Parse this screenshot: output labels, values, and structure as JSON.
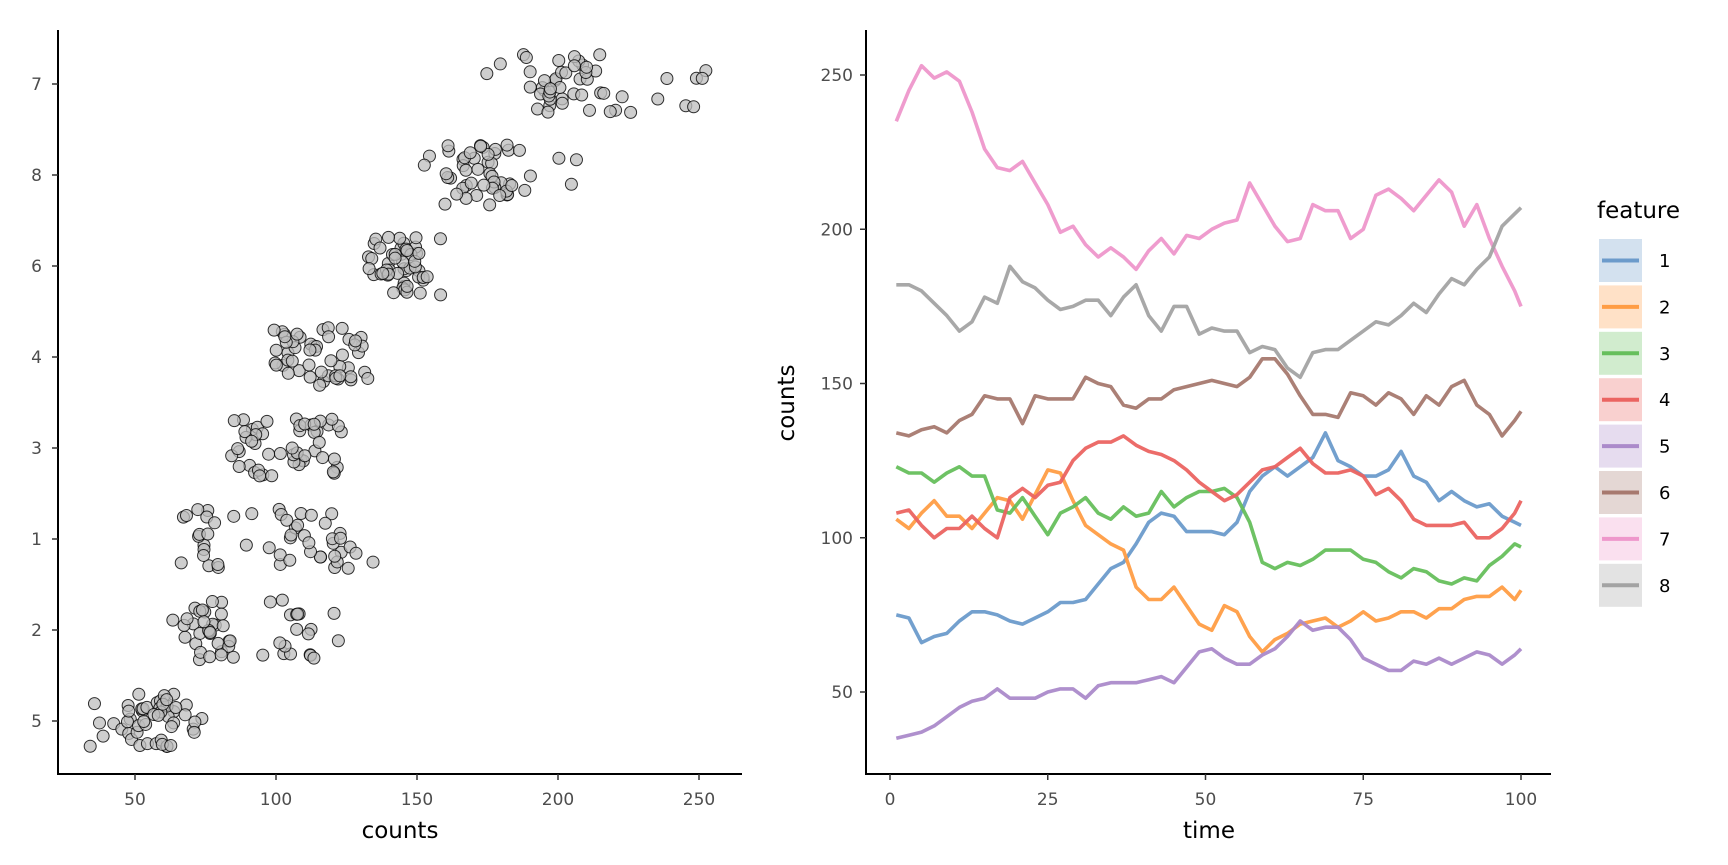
{
  "chart_data": [
    {
      "type": "scatter",
      "subtype": "jittered strip plot",
      "xlabel": "counts",
      "ylabel": "",
      "xlim": [
        22,
        265
      ],
      "xticks": [
        "50",
        "100",
        "150",
        "200",
        "250"
      ],
      "xtick_values": [
        50,
        100,
        150,
        200,
        250
      ],
      "categories_bottom_to_top": [
        "5",
        "2",
        "1",
        "3",
        "4",
        "6",
        "8",
        "7"
      ],
      "point_fill": "#bdbdbd",
      "point_edge": "#000000",
      "values_source": "each category shows the counts of the matching feature from the line chart"
    },
    {
      "type": "line",
      "xlabel": "time",
      "ylabel": "counts",
      "xlim": [
        -4,
        105
      ],
      "ylim": [
        24,
        266
      ],
      "xticks": [
        "0",
        "25",
        "50",
        "75",
        "100"
      ],
      "xtick_values": [
        0,
        25,
        50,
        75,
        100
      ],
      "yticks": [
        "50",
        "100",
        "150",
        "200",
        "250"
      ],
      "ytick_values": [
        50,
        100,
        150,
        200,
        250
      ],
      "legend": {
        "title": "feature",
        "position": "right"
      },
      "x": [
        1,
        3,
        5,
        7,
        9,
        11,
        13,
        15,
        17,
        19,
        21,
        23,
        25,
        27,
        29,
        31,
        33,
        35,
        37,
        39,
        41,
        43,
        45,
        47,
        49,
        51,
        53,
        55,
        57,
        59,
        61,
        63,
        65,
        67,
        69,
        71,
        73,
        75,
        77,
        79,
        81,
        83,
        85,
        87,
        89,
        91,
        93,
        95,
        97,
        99,
        100
      ],
      "series": [
        {
          "name": "1",
          "color": "#6c9bcb",
          "values": [
            75,
            74,
            66,
            68,
            69,
            73,
            76,
            76,
            75,
            73,
            72,
            74,
            76,
            79,
            79,
            80,
            85,
            90,
            92,
            98,
            105,
            108,
            107,
            102,
            102,
            102,
            101,
            105,
            115,
            120,
            123,
            120,
            123,
            126,
            134,
            125,
            123,
            120,
            120,
            122,
            128,
            120,
            118,
            112,
            115,
            112,
            110,
            111,
            107,
            105,
            104
          ]
        },
        {
          "name": "2",
          "color": "#ff9d45",
          "values": [
            106,
            103,
            108,
            112,
            107,
            107,
            103,
            108,
            113,
            112,
            106,
            114,
            122,
            121,
            112,
            104,
            101,
            98,
            96,
            84,
            80,
            80,
            84,
            78,
            72,
            70,
            78,
            76,
            68,
            63,
            67,
            69,
            72,
            73,
            74,
            71,
            73,
            76,
            73,
            74,
            76,
            76,
            74,
            77,
            77,
            80,
            81,
            81,
            84,
            80,
            83
          ]
        },
        {
          "name": "3",
          "color": "#66bf5c",
          "values": [
            123,
            121,
            121,
            118,
            121,
            123,
            120,
            120,
            109,
            108,
            113,
            107,
            101,
            108,
            110,
            113,
            108,
            106,
            110,
            107,
            108,
            115,
            110,
            113,
            115,
            115,
            116,
            113,
            105,
            92,
            90,
            92,
            91,
            93,
            96,
            96,
            96,
            93,
            92,
            89,
            87,
            90,
            89,
            86,
            85,
            87,
            86,
            91,
            94,
            98,
            97
          ]
        },
        {
          "name": "4",
          "color": "#eb6461",
          "values": [
            108,
            109,
            104,
            100,
            103,
            103,
            107,
            103,
            100,
            113,
            116,
            113,
            117,
            118,
            125,
            129,
            131,
            131,
            133,
            130,
            128,
            127,
            125,
            122,
            118,
            115,
            112,
            114,
            118,
            122,
            123,
            126,
            129,
            124,
            121,
            121,
            122,
            120,
            114,
            116,
            112,
            106,
            104,
            104,
            104,
            105,
            100,
            100,
            103,
            108,
            112
          ]
        },
        {
          "name": "5",
          "color": "#ab8aca",
          "values": [
            35,
            36,
            37,
            39,
            42,
            45,
            47,
            48,
            51,
            48,
            48,
            48,
            50,
            51,
            51,
            48,
            52,
            53,
            53,
            53,
            54,
            55,
            53,
            58,
            63,
            64,
            61,
            59,
            59,
            62,
            64,
            68,
            73,
            70,
            71,
            71,
            67,
            61,
            59,
            57,
            57,
            60,
            59,
            61,
            59,
            61,
            63,
            62,
            59,
            62,
            64
          ]
        },
        {
          "name": "6",
          "color": "#a7796f",
          "values": [
            134,
            133,
            135,
            136,
            134,
            138,
            140,
            146,
            145,
            145,
            137,
            146,
            145,
            145,
            145,
            152,
            150,
            149,
            143,
            142,
            145,
            145,
            148,
            149,
            150,
            151,
            150,
            149,
            152,
            158,
            158,
            153,
            146,
            140,
            140,
            139,
            147,
            146,
            143,
            147,
            145,
            140,
            146,
            143,
            149,
            151,
            143,
            140,
            133,
            138,
            141
          ]
        },
        {
          "name": "7",
          "color": "#ee97cb",
          "values": [
            235,
            245,
            253,
            249,
            251,
            248,
            238,
            226,
            220,
            219,
            222,
            215,
            208,
            199,
            201,
            195,
            191,
            194,
            191,
            187,
            193,
            197,
            192,
            198,
            197,
            200,
            202,
            203,
            215,
            208,
            201,
            196,
            197,
            208,
            206,
            206,
            197,
            200,
            211,
            213,
            210,
            206,
            211,
            216,
            212,
            201,
            208,
            197,
            188,
            180,
            175
          ]
        },
        {
          "name": "8",
          "color": "#a3a3a3",
          "values": [
            182,
            182,
            180,
            176,
            172,
            167,
            170,
            178,
            176,
            188,
            183,
            181,
            177,
            174,
            175,
            177,
            177,
            172,
            178,
            182,
            172,
            167,
            175,
            175,
            166,
            168,
            167,
            167,
            160,
            162,
            161,
            155,
            152,
            160,
            161,
            161,
            164,
            167,
            170,
            169,
            172,
            176,
            173,
            179,
            184,
            182,
            187,
            191,
            201,
            205,
            207
          ]
        }
      ]
    }
  ]
}
